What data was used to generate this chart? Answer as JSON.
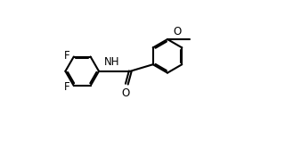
{
  "background_color": "#ffffff",
  "line_color": "#000000",
  "line_width": 1.5,
  "font_size": 8.5,
  "r_hex": 0.72,
  "labels": {
    "F_top": "F",
    "F_bottom": "F",
    "NH": "NH",
    "O_carbonyl": "O",
    "O_methoxy": "O"
  },
  "xlim": [
    0,
    9.5
  ],
  "ylim": [
    0.2,
    4.8
  ]
}
